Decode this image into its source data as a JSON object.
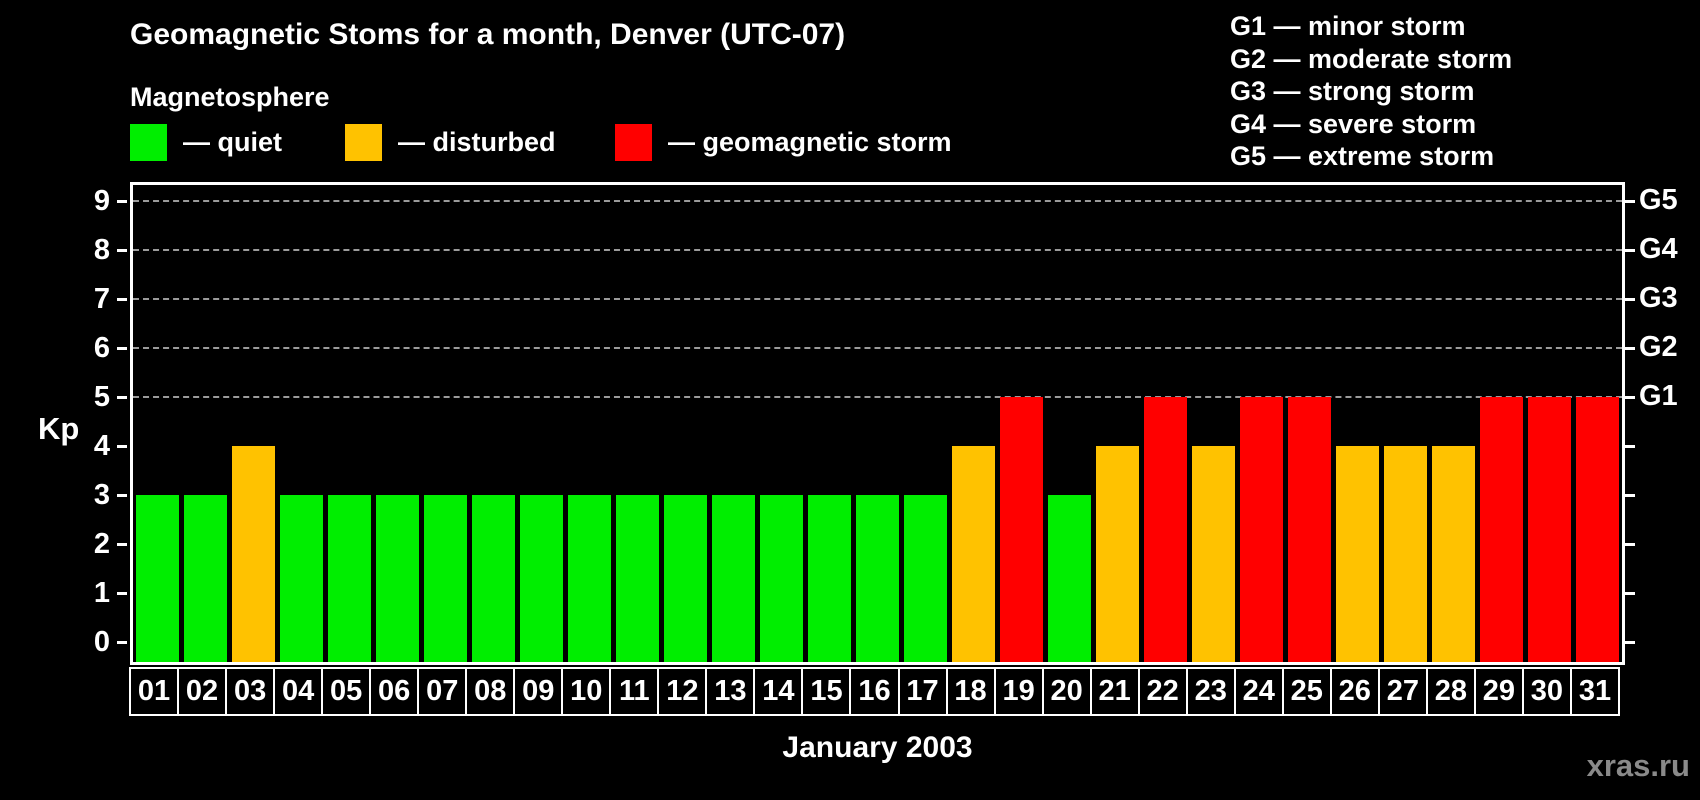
{
  "title": "Geomagnetic Stoms for a month, Denver (UTC-07)",
  "magnetosphere_legend": {
    "heading": "Magnetosphere",
    "items": [
      {
        "name": "quiet",
        "label": "— quiet",
        "color": "#00ee00"
      },
      {
        "name": "disturbed",
        "label": "— disturbed",
        "color": "#ffc200"
      },
      {
        "name": "storm",
        "label": "— geomagnetic storm",
        "color": "#ff0000"
      }
    ]
  },
  "g_scale_legend": {
    "items": [
      "G1 — minor storm",
      "G2 — moderate storm",
      "G3 — strong storm",
      "G4 — severe storm",
      "G5 — extreme storm"
    ]
  },
  "chart_data": {
    "type": "bar",
    "title": "Geomagnetic Stoms for a month, Denver (UTC-07)",
    "xlabel": "January 2003",
    "ylabel": "Kp",
    "ylim": [
      0,
      9
    ],
    "y_ticks": [
      0,
      1,
      2,
      3,
      4,
      5,
      6,
      7,
      8,
      9
    ],
    "gridlines_at_kp": [
      5,
      6,
      7,
      8,
      9
    ],
    "grid": "dashed",
    "legend_position": "top",
    "right_axis_labels": [
      {
        "kp": 5,
        "label": "G1"
      },
      {
        "kp": 6,
        "label": "G2"
      },
      {
        "kp": 7,
        "label": "G3"
      },
      {
        "kp": 8,
        "label": "G4"
      },
      {
        "kp": 9,
        "label": "G5"
      }
    ],
    "categories": [
      "01",
      "02",
      "03",
      "04",
      "05",
      "06",
      "07",
      "08",
      "09",
      "10",
      "11",
      "12",
      "13",
      "14",
      "15",
      "16",
      "17",
      "18",
      "19",
      "20",
      "21",
      "22",
      "23",
      "24",
      "25",
      "26",
      "27",
      "28",
      "29",
      "30",
      "31"
    ],
    "values": [
      3,
      3,
      4,
      3,
      3,
      3,
      3,
      3,
      3,
      3,
      3,
      3,
      3,
      3,
      3,
      3,
      3,
      4,
      5,
      3,
      4,
      5,
      4,
      5,
      5,
      4,
      4,
      4,
      5,
      5,
      5
    ],
    "statuses": [
      "quiet",
      "quiet",
      "disturbed",
      "quiet",
      "quiet",
      "quiet",
      "quiet",
      "quiet",
      "quiet",
      "quiet",
      "quiet",
      "quiet",
      "quiet",
      "quiet",
      "quiet",
      "quiet",
      "quiet",
      "disturbed",
      "storm",
      "quiet",
      "disturbed",
      "storm",
      "disturbed",
      "storm",
      "storm",
      "disturbed",
      "disturbed",
      "disturbed",
      "storm",
      "storm",
      "storm"
    ],
    "colors": {
      "quiet": "#00ee00",
      "disturbed": "#ffc200",
      "storm": "#ff0000"
    }
  },
  "footer": {
    "xlabel": "January 2003",
    "watermark": "xras.ru"
  }
}
